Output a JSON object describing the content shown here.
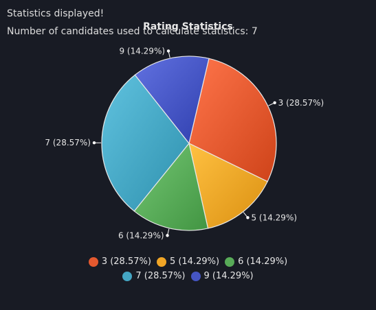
{
  "status": {
    "line1": "Statistics displayed!",
    "line2": "Number of candidates used to calculate statistics: 7"
  },
  "chart_data": {
    "type": "pie",
    "title": "Rating Statistics",
    "categories": [
      "3",
      "5",
      "6",
      "7",
      "9"
    ],
    "values": [
      28.57,
      14.29,
      14.29,
      28.57,
      14.29
    ],
    "labels": [
      "3 (28.57%)",
      "5 (14.29%)",
      "6 (14.29%)",
      "7 (28.57%)",
      "9 (14.29%)"
    ],
    "colors": [
      "#e4592f",
      "#f0a526",
      "#58ab58",
      "#44a6c3",
      "#4555c4"
    ],
    "legend": "bottom",
    "data_labels": true
  }
}
